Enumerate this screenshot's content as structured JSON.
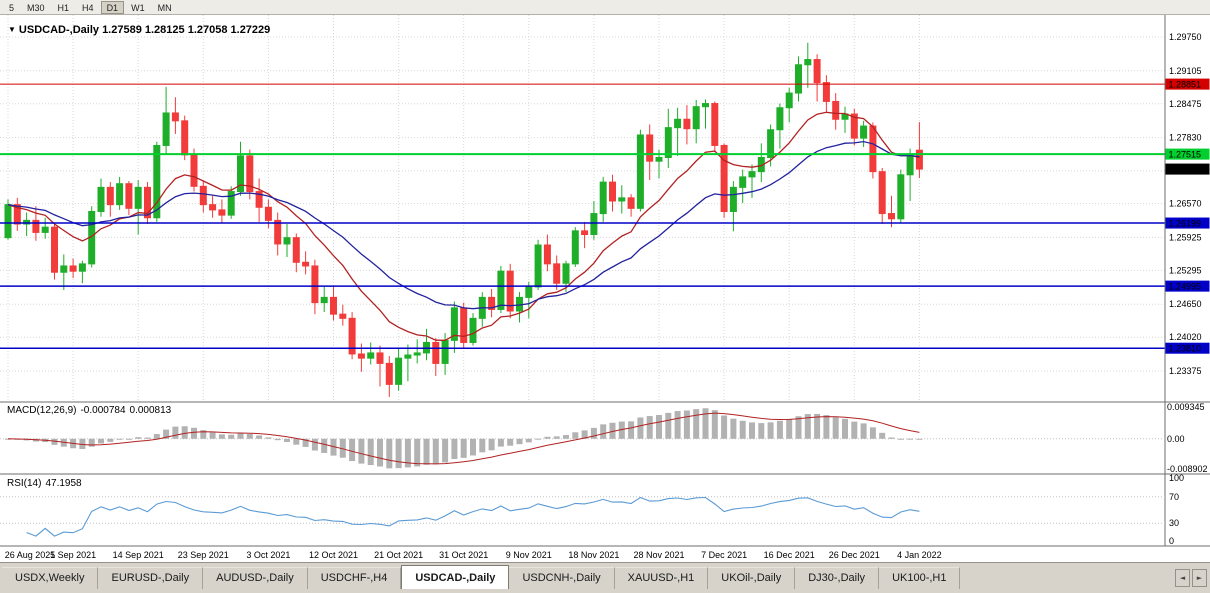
{
  "toolbar": {
    "items": [
      {
        "label": "5",
        "active": false
      },
      {
        "label": "M30",
        "active": false
      },
      {
        "label": "H1",
        "active": false
      },
      {
        "label": "H4",
        "active": false
      },
      {
        "label": "D1",
        "active": true
      },
      {
        "label": "W1",
        "active": false
      },
      {
        "label": "MN",
        "active": false
      }
    ]
  },
  "chart": {
    "title": "USDCAD-,Daily",
    "ohlc_text": "1.27589 1.28125 1.27058 1.27229"
  },
  "chart_data": {
    "type": "candlestick",
    "symbol": "USDCAD-",
    "timeframe": "Daily",
    "colors": {
      "bull": "#1fae2a",
      "bear": "#f23b3b",
      "ma_fast": "#b22222",
      "ma_slow": "#22229e",
      "macd_hist": "#b2b2b2",
      "macd_signal": "#b22222",
      "rsi": "#5b9bd5",
      "grid": "#d8d8d8",
      "level_red": "#d40000",
      "level_green": "#00cf2e",
      "level_blue": "#0000c8",
      "current_badge": "#000000"
    },
    "price_ticks": [
      {
        "label": "1.29750",
        "value": 1.2975
      },
      {
        "label": "1.29105",
        "value": 1.29105
      },
      {
        "label": "1.28475",
        "value": 1.28475
      },
      {
        "label": "1.27830",
        "value": 1.2783
      },
      {
        "label": "1.27195",
        "value": 1.27195
      },
      {
        "label": "1.26570",
        "value": 1.2657
      },
      {
        "label": "1.25925",
        "value": 1.25925
      },
      {
        "label": "1.25295",
        "value": 1.25295
      },
      {
        "label": "1.24650",
        "value": 1.2465
      },
      {
        "label": "1.24020",
        "value": 1.2402
      },
      {
        "label": "1.23375",
        "value": 1.23375
      }
    ],
    "x_labels": [
      {
        "index": 0,
        "label": "26 Aug 2021"
      },
      {
        "index": 7,
        "label": "5 Sep 2021"
      },
      {
        "index": 14,
        "label": "14 Sep 2021"
      },
      {
        "index": 21,
        "label": "23 Sep 2021"
      },
      {
        "index": 28,
        "label": "3 Oct 2021"
      },
      {
        "index": 35,
        "label": "12 Oct 2021"
      },
      {
        "index": 42,
        "label": "21 Oct 2021"
      },
      {
        "index": 49,
        "label": "31 Oct 2021"
      },
      {
        "index": 56,
        "label": "9 Nov 2021"
      },
      {
        "index": 63,
        "label": "18 Nov 2021"
      },
      {
        "index": 70,
        "label": "28 Nov 2021"
      },
      {
        "index": 77,
        "label": "7 Dec 2021"
      },
      {
        "index": 84,
        "label": "16 Dec 2021"
      },
      {
        "index": 91,
        "label": "26 Dec 2021"
      },
      {
        "index": 98,
        "label": "4 Jan 2022"
      }
    ],
    "hlines": [
      {
        "price": 1.28851,
        "label": "1.28851",
        "color": "#d40000",
        "width": 1
      },
      {
        "price": 1.27515,
        "label": "1.27515",
        "color": "#00cf2e",
        "width": 2
      },
      {
        "price": 1.26199,
        "label": "1.26199",
        "color": "#0000c8",
        "width": 1.5
      },
      {
        "price": 1.24995,
        "label": "1.24995",
        "color": "#0000c8",
        "width": 1.5
      },
      {
        "price": 1.2381,
        "label": "1.23810",
        "color": "#0000c8",
        "width": 1.5
      }
    ],
    "current_price": {
      "label": "1.27229",
      "value": 1.27229
    },
    "moving_averages": [
      {
        "type": "EMA",
        "period": 12,
        "color": "#b22222"
      },
      {
        "type": "EMA",
        "period": 26,
        "color": "#22229e"
      }
    ],
    "macd": {
      "label": "MACD(12,26,9)",
      "value_main": "-0.000784",
      "value_signal": "0.000813",
      "fast": 12,
      "slow": 26,
      "signal": 9,
      "axis_max": 0.009345,
      "axis_min": -0.008902,
      "axis_labels": [
        {
          "label": "0.009345",
          "value": 0.009345
        },
        {
          "label": "0.00",
          "value": 0
        },
        {
          "label": "-0.008902",
          "value": -0.008902
        }
      ]
    },
    "rsi": {
      "label": "RSI(14)",
      "value": "47.1958",
      "period": 14,
      "levels": [
        70,
        30
      ],
      "axis_labels": [
        {
          "label": "100",
          "value": 100
        },
        {
          "label": "70",
          "value": 70
        },
        {
          "label": "30",
          "value": 30
        },
        {
          "label": "0",
          "value": 0
        }
      ]
    },
    "candles": [
      [
        1.2592,
        1.2665,
        1.2588,
        1.2655
      ],
      [
        1.2655,
        1.2668,
        1.2605,
        1.2618
      ],
      [
        1.2618,
        1.264,
        1.2595,
        1.2625
      ],
      [
        1.2625,
        1.2652,
        1.2586,
        1.2602
      ],
      [
        1.2602,
        1.263,
        1.259,
        1.2612
      ],
      [
        1.2612,
        1.2618,
        1.2512,
        1.2526
      ],
      [
        1.2526,
        1.256,
        1.2492,
        1.2538
      ],
      [
        1.2538,
        1.2552,
        1.2515,
        1.2528
      ],
      [
        1.2528,
        1.2548,
        1.2505,
        1.2542
      ],
      [
        1.2542,
        1.2652,
        1.2535,
        1.2642
      ],
      [
        1.2642,
        1.2705,
        1.2632,
        1.2688
      ],
      [
        1.2688,
        1.2698,
        1.2632,
        1.2655
      ],
      [
        1.2655,
        1.2708,
        1.2645,
        1.2695
      ],
      [
        1.2695,
        1.27,
        1.2635,
        1.2648
      ],
      [
        1.2648,
        1.2702,
        1.2598,
        1.2688
      ],
      [
        1.2688,
        1.2698,
        1.2618,
        1.263
      ],
      [
        1.263,
        1.2775,
        1.2622,
        1.2768
      ],
      [
        1.2768,
        1.288,
        1.275,
        1.283
      ],
      [
        1.283,
        1.286,
        1.279,
        1.2815
      ],
      [
        1.2815,
        1.2825,
        1.274,
        1.275
      ],
      [
        1.275,
        1.2762,
        1.268,
        1.269
      ],
      [
        1.269,
        1.27,
        1.264,
        1.2655
      ],
      [
        1.2655,
        1.2672,
        1.263,
        1.2645
      ],
      [
        1.2645,
        1.2665,
        1.262,
        1.2635
      ],
      [
        1.2635,
        1.269,
        1.2628,
        1.268
      ],
      [
        1.268,
        1.2775,
        1.2672,
        1.2748
      ],
      [
        1.2748,
        1.276,
        1.2665,
        1.268
      ],
      [
        1.268,
        1.2705,
        1.2622,
        1.265
      ],
      [
        1.265,
        1.2665,
        1.261,
        1.2625
      ],
      [
        1.2625,
        1.264,
        1.2558,
        1.258
      ],
      [
        1.258,
        1.2618,
        1.2555,
        1.2592
      ],
      [
        1.2592,
        1.26,
        1.2526,
        1.2545
      ],
      [
        1.2545,
        1.2566,
        1.2522,
        1.2538
      ],
      [
        1.2538,
        1.255,
        1.2446,
        1.2468
      ],
      [
        1.2468,
        1.25,
        1.245,
        1.2478
      ],
      [
        1.2478,
        1.25,
        1.2434,
        1.2446
      ],
      [
        1.2446,
        1.2464,
        1.2424,
        1.2438
      ],
      [
        1.2438,
        1.245,
        1.236,
        1.237
      ],
      [
        1.237,
        1.239,
        1.2336,
        1.2362
      ],
      [
        1.2362,
        1.2392,
        1.235,
        1.2372
      ],
      [
        1.2372,
        1.2386,
        1.2308,
        1.2352
      ],
      [
        1.2352,
        1.2366,
        1.2288,
        1.2312
      ],
      [
        1.2312,
        1.2382,
        1.23,
        1.2362
      ],
      [
        1.2362,
        1.2388,
        1.2318,
        1.2368
      ],
      [
        1.2368,
        1.2398,
        1.2352,
        1.2372
      ],
      [
        1.2372,
        1.2418,
        1.2358,
        1.2392
      ],
      [
        1.2392,
        1.24,
        1.2328,
        1.2352
      ],
      [
        1.2352,
        1.241,
        1.233,
        1.2396
      ],
      [
        1.2396,
        1.247,
        1.2372,
        1.2458
      ],
      [
        1.2458,
        1.2468,
        1.2382,
        1.2392
      ],
      [
        1.2392,
        1.2448,
        1.2386,
        1.2438
      ],
      [
        1.2438,
        1.2488,
        1.2422,
        1.2478
      ],
      [
        1.2478,
        1.2494,
        1.244,
        1.2455
      ],
      [
        1.2455,
        1.2538,
        1.2448,
        1.2528
      ],
      [
        1.2528,
        1.2542,
        1.2438,
        1.2452
      ],
      [
        1.2452,
        1.2488,
        1.243,
        1.2478
      ],
      [
        1.2478,
        1.2508,
        1.2438,
        1.2498
      ],
      [
        1.2498,
        1.2588,
        1.2492,
        1.2578
      ],
      [
        1.2578,
        1.2598,
        1.2528,
        1.2542
      ],
      [
        1.2542,
        1.2558,
        1.2492,
        1.2505
      ],
      [
        1.2505,
        1.2548,
        1.2488,
        1.2542
      ],
      [
        1.2542,
        1.2612,
        1.2536,
        1.2605
      ],
      [
        1.2605,
        1.2622,
        1.2572,
        1.2598
      ],
      [
        1.2598,
        1.2662,
        1.2588,
        1.2638
      ],
      [
        1.2638,
        1.2708,
        1.2622,
        1.2698
      ],
      [
        1.2698,
        1.2712,
        1.2642,
        1.2662
      ],
      [
        1.2662,
        1.2692,
        1.2638,
        1.2668
      ],
      [
        1.2668,
        1.2675,
        1.2632,
        1.2648
      ],
      [
        1.2648,
        1.2798,
        1.2642,
        1.2788
      ],
      [
        1.2788,
        1.2808,
        1.2702,
        1.2738
      ],
      [
        1.2738,
        1.276,
        1.2705,
        1.2745
      ],
      [
        1.2745,
        1.2838,
        1.2725,
        1.2802
      ],
      [
        1.2802,
        1.284,
        1.2748,
        1.2818
      ],
      [
        1.2818,
        1.2845,
        1.277,
        1.28
      ],
      [
        1.28,
        1.2855,
        1.2772,
        1.2842
      ],
      [
        1.2842,
        1.2856,
        1.28,
        1.2848
      ],
      [
        1.2848,
        1.2852,
        1.2755,
        1.2768
      ],
      [
        1.2768,
        1.2772,
        1.263,
        1.2642
      ],
      [
        1.2642,
        1.27,
        1.2604,
        1.2688
      ],
      [
        1.2688,
        1.2722,
        1.2658,
        1.2708
      ],
      [
        1.2708,
        1.2732,
        1.2668,
        1.2718
      ],
      [
        1.2718,
        1.2772,
        1.2698,
        1.2745
      ],
      [
        1.2745,
        1.2808,
        1.2728,
        1.2798
      ],
      [
        1.2798,
        1.2848,
        1.2762,
        1.284
      ],
      [
        1.284,
        1.2878,
        1.2812,
        1.2868
      ],
      [
        1.2868,
        1.2938,
        1.2852,
        1.2922
      ],
      [
        1.2922,
        1.2964,
        1.2878,
        1.2932
      ],
      [
        1.2932,
        1.2942,
        1.2852,
        1.2888
      ],
      [
        1.2888,
        1.2902,
        1.2832,
        1.2852
      ],
      [
        1.2852,
        1.2868,
        1.2798,
        1.2818
      ],
      [
        1.2818,
        1.2842,
        1.2792,
        1.2828
      ],
      [
        1.2828,
        1.2838,
        1.2768,
        1.2782
      ],
      [
        1.2782,
        1.2815,
        1.2765,
        1.2805
      ],
      [
        1.2805,
        1.2812,
        1.2705,
        1.2718
      ],
      [
        1.2718,
        1.2725,
        1.2618,
        1.2638
      ],
      [
        1.2638,
        1.2672,
        1.2612,
        1.2628
      ],
      [
        1.2628,
        1.2722,
        1.262,
        1.2712
      ],
      [
        1.2712,
        1.2762,
        1.2662,
        1.2752
      ],
      [
        1.27589,
        1.28125,
        1.27058,
        1.27229
      ]
    ]
  },
  "tabs": {
    "items": [
      {
        "label": "USDX,Weekly",
        "active": false
      },
      {
        "label": "EURUSD-,Daily",
        "active": false
      },
      {
        "label": "AUDUSD-,Daily",
        "active": false
      },
      {
        "label": "USDCHF-,H4",
        "active": false
      },
      {
        "label": "USDCAD-,Daily",
        "active": true
      },
      {
        "label": "USDCNH-,Daily",
        "active": false
      },
      {
        "label": "XAUUSD-,H1",
        "active": false
      },
      {
        "label": "UKOil-,Daily",
        "active": false
      },
      {
        "label": "DJ30-,Daily",
        "active": false
      },
      {
        "label": "UK100-,H1",
        "active": false
      }
    ],
    "scroll_left": "◄",
    "scroll_right": "►"
  }
}
